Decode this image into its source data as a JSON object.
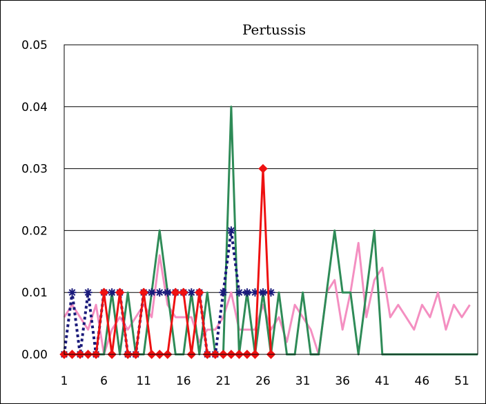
{
  "chart_data": {
    "type": "line",
    "title": "Pertussis",
    "xlabel": "",
    "ylabel": "",
    "ylim": [
      0,
      0.05
    ],
    "xlim": [
      1,
      53
    ],
    "y_ticks": [
      "0.00",
      "0.01",
      "0.02",
      "0.03",
      "0.04",
      "0.05"
    ],
    "x_ticks": [
      "1",
      "6",
      "11",
      "16",
      "21",
      "26",
      "31",
      "36",
      "41",
      "46",
      "51"
    ],
    "grid": "horizontal",
    "legend": "none",
    "colors": {
      "green": "#2e8b57",
      "red": "#ee1111",
      "navy": "#1a1a7a",
      "pink": "#f48fc1"
    },
    "series": [
      {
        "color_key": "pink",
        "style": "solid",
        "marker": "none",
        "x": [
          1,
          2,
          3,
          4,
          5,
          6,
          7,
          8,
          9,
          10,
          11,
          12,
          13,
          14,
          15,
          16,
          17,
          18,
          19,
          20,
          21,
          22,
          23,
          24,
          25,
          26,
          27,
          28,
          29,
          30,
          31,
          32,
          33,
          34,
          35,
          36,
          37,
          38,
          39,
          40,
          41,
          42,
          43,
          44,
          45,
          46,
          47,
          48,
          49,
          50,
          51,
          52,
          53
        ],
        "values": [
          0.006,
          0.008,
          0.006,
          0.004,
          0.008,
          0,
          0.004,
          0.006,
          0.004,
          0.006,
          0.008,
          0.006,
          0.016,
          0.008,
          0.006,
          0.006,
          0.006,
          0.002,
          0.004,
          0.004,
          0.006,
          0.01,
          0.004,
          0.004,
          0.004,
          0.008,
          0.004,
          0.006,
          0.002,
          0.008,
          0.006,
          0.004,
          0,
          0.01,
          0.012,
          0.004,
          0.01,
          0.018,
          0.006,
          0.012,
          0.014,
          0.006,
          0.008,
          0.006,
          0.004,
          0.008,
          0.006,
          0.01,
          0.004,
          0.008,
          0.006,
          0.008,
          null
        ]
      },
      {
        "color_key": "green",
        "style": "solid",
        "marker": "none",
        "x": [
          1,
          2,
          3,
          4,
          5,
          6,
          7,
          8,
          9,
          10,
          11,
          12,
          13,
          14,
          15,
          16,
          17,
          18,
          19,
          20,
          21,
          22,
          23,
          24,
          25,
          26,
          27,
          28,
          29,
          30,
          31,
          32,
          33,
          34,
          35,
          36,
          37,
          38,
          39,
          40,
          41,
          42,
          43,
          44,
          45,
          46,
          47,
          48,
          49,
          50,
          51,
          52,
          53
        ],
        "values": [
          0,
          0,
          0,
          0,
          0,
          0,
          0.01,
          0,
          0.01,
          0,
          0,
          0.01,
          0.02,
          0.01,
          0,
          0,
          0.01,
          0,
          0.01,
          0,
          0,
          0.04,
          0,
          0.01,
          0,
          0.01,
          0,
          0.01,
          0,
          0,
          0.01,
          0,
          0,
          0.01,
          0.02,
          0.01,
          0.01,
          0,
          0.01,
          0.02,
          0,
          0,
          0,
          0,
          0,
          0,
          0,
          0,
          0,
          0,
          0,
          0,
          0
        ]
      },
      {
        "color_key": "navy",
        "style": "dotted",
        "marker": "asterisk",
        "x": [
          1,
          2,
          3,
          4,
          5,
          6,
          7,
          8,
          9,
          10,
          11,
          12,
          13,
          14,
          15,
          16,
          17,
          18,
          19,
          20,
          21,
          22,
          23,
          24,
          25,
          26,
          27
        ],
        "values": [
          0,
          0.01,
          0,
          0.01,
          0,
          0.01,
          0.01,
          0.01,
          0,
          0,
          0.01,
          0.01,
          0.01,
          0.01,
          0.01,
          0.01,
          0.01,
          0.01,
          0,
          0,
          0.01,
          0.02,
          0.01,
          0.01,
          0.01,
          0.01,
          0.01
        ]
      },
      {
        "color_key": "red",
        "style": "solid",
        "marker": "diamond",
        "x": [
          1,
          2,
          3,
          4,
          5,
          6,
          7,
          8,
          9,
          10,
          11,
          12,
          13,
          14,
          15,
          16,
          17,
          18,
          19,
          20,
          21,
          22,
          23,
          24,
          25,
          26,
          27
        ],
        "values": [
          0,
          0,
          0,
          0,
          0,
          0.01,
          0,
          0.01,
          0,
          0,
          0.01,
          0,
          0,
          0,
          0.01,
          0.01,
          0,
          0.01,
          0,
          0,
          0,
          0,
          0,
          0,
          0,
          0.03,
          0
        ]
      }
    ]
  }
}
